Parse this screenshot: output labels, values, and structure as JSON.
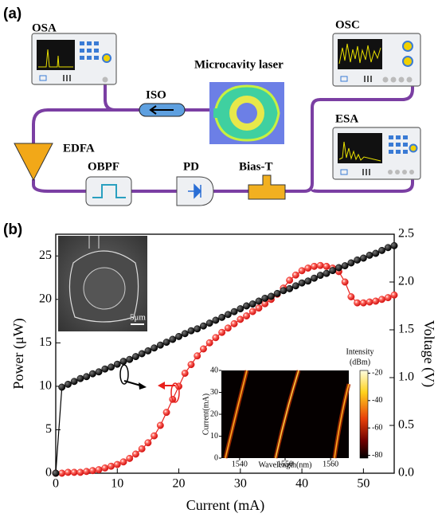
{
  "diagram": {
    "panel_label": "(a)",
    "nodes": [
      {
        "label": "OSA"
      },
      {
        "label": "OSC"
      },
      {
        "label": "ESA"
      },
      {
        "label": "ISO"
      },
      {
        "label": "Microcavity laser"
      },
      {
        "label": "EDFA"
      },
      {
        "label": "OBPF"
      },
      {
        "label": "PD"
      },
      {
        "label": "Bias-T"
      }
    ]
  },
  "chart_data": {
    "type": "line",
    "panel_label": "(b)",
    "x_label": "Current (mA)",
    "y_label": "Power (μW)",
    "y2_label": "Voltage (V)",
    "x": [
      0,
      1,
      2,
      3,
      4,
      5,
      6,
      7,
      8,
      9,
      10,
      11,
      12,
      13,
      14,
      15,
      16,
      17,
      18,
      19,
      20,
      21,
      22,
      23,
      24,
      25,
      26,
      27,
      28,
      29,
      30,
      31,
      32,
      33,
      34,
      35,
      36,
      37,
      38,
      39,
      40,
      41,
      42,
      43,
      44,
      45,
      46,
      47,
      48,
      49,
      50,
      51,
      52,
      53,
      54,
      55
    ],
    "series": [
      {
        "color": "#e8201c",
        "values": [
          0,
          0,
          0.1,
          0.1,
          0.1,
          0.2,
          0.3,
          0.4,
          0.6,
          0.8,
          1.0,
          1.3,
          1.7,
          2.2,
          2.8,
          3.5,
          4.3,
          5.5,
          7,
          8.5,
          10,
          11.5,
          12.5,
          13.5,
          14.3,
          15,
          15.6,
          16.2,
          16.7,
          17.2,
          17.7,
          18.1,
          18.6,
          19,
          19.5,
          20,
          20.6,
          21.3,
          22.2,
          22.8,
          23.3,
          23.6,
          23.8,
          23.9,
          23.8,
          23.6,
          23.2,
          22,
          20.3,
          19.6,
          19.6,
          19.7,
          19.8,
          20,
          20.2,
          20.5
        ]
      },
      {
        "color": "#000000",
        "axis": "y2",
        "values": [
          0,
          0.9,
          0.93,
          0.96,
          0.99,
          1.01,
          1.04,
          1.06,
          1.09,
          1.11,
          1.14,
          1.17,
          1.19,
          1.22,
          1.25,
          1.28,
          1.31,
          1.34,
          1.37,
          1.4,
          1.43,
          1.46,
          1.49,
          1.51,
          1.54,
          1.57,
          1.6,
          1.63,
          1.66,
          1.69,
          1.72,
          1.75,
          1.77,
          1.8,
          1.83,
          1.85,
          1.88,
          1.91,
          1.93,
          1.96,
          1.99,
          2.01,
          2.04,
          2.07,
          2.09,
          2.12,
          2.15,
          2.17,
          2.2,
          2.23,
          2.25,
          2.28,
          2.3,
          2.33,
          2.36,
          2.38
        ]
      }
    ],
    "xlim": [
      0,
      55
    ],
    "xticks": [
      0,
      10,
      20,
      30,
      40,
      50
    ],
    "ylim": [
      0,
      27.5
    ],
    "yticks": [
      0,
      5,
      10,
      15,
      20,
      25
    ],
    "y2lim": [
      0,
      2.5
    ],
    "y2ticks": [
      {
        "value": 0,
        "label": "0.0"
      },
      0.5,
      {
        "value": 1,
        "label": "1.0"
      },
      1.5,
      {
        "value": 2,
        "label": "2.0"
      },
      2.5
    ]
  },
  "inset_sem": {
    "scale_label": "5μm"
  },
  "inset_spectrum": {
    "x_label": "Wavelength(nm)",
    "y_label": "Current(mA)",
    "xlim": [
      1536,
      1564
    ],
    "xticks": [
      1540,
      1550,
      1560
    ],
    "ylim": [
      0,
      40
    ],
    "yticks": [
      0,
      10,
      20,
      30,
      40
    ],
    "colorbar_label": "Intensity",
    "colorbar_unit": "(dBm)",
    "clim": [
      -82,
      -18
    ],
    "cticks": [
      -20,
      -40,
      -60,
      -80
    ]
  }
}
